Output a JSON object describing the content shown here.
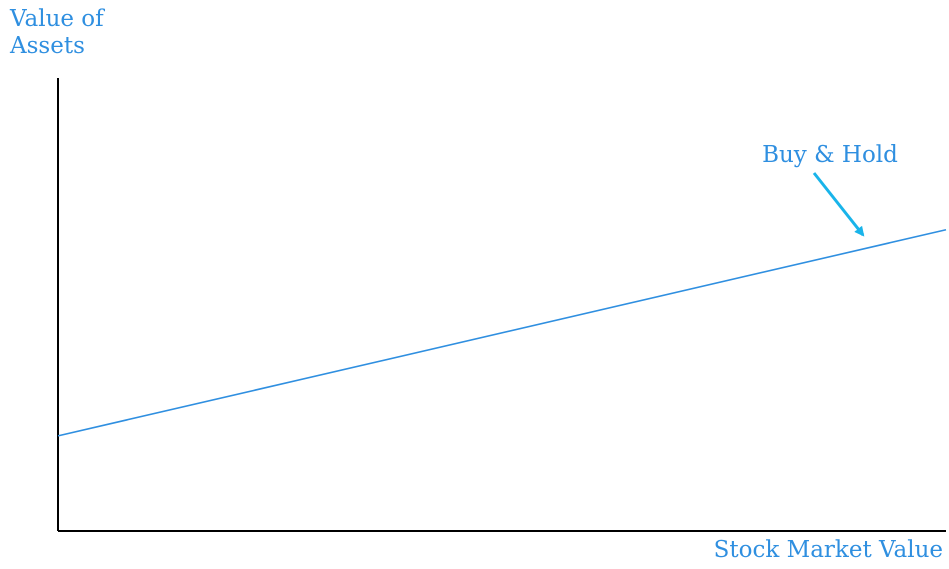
{
  "chart_data": {
    "type": "line",
    "ylabel": "Value of\nAssets",
    "xlabel": "Stock Market Value",
    "xlim": [
      0,
      1
    ],
    "ylim": [
      0,
      1
    ],
    "grid": false,
    "series": [
      {
        "name": "Buy & Hold",
        "x": [
          0,
          1
        ],
        "y": [
          0.21,
          0.665
        ]
      }
    ],
    "annotations": [
      {
        "text": "Buy & Hold",
        "arrow": true,
        "target_x": 0.91,
        "target_y": 0.64
      }
    ],
    "colors": {
      "axis": "#000000",
      "line": "#2f8fe0",
      "text": "#2f8fe0",
      "arrow": "#19b4ea"
    }
  }
}
